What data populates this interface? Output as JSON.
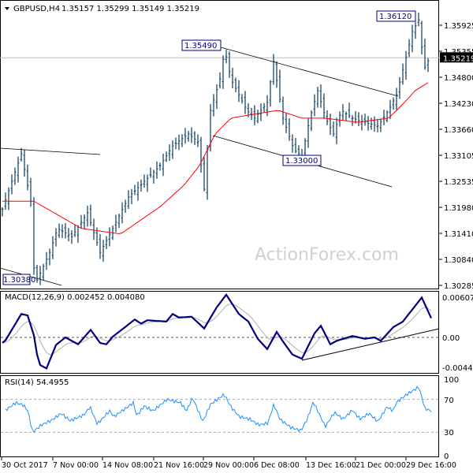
{
  "header": {
    "symbol": "GBPUSD,H4",
    "ohlc": "1.35157 1.35299 1.35149 1.35219"
  },
  "watermark": "ActionForex.com",
  "colors": {
    "bars": "#0b3a5c",
    "ma": "#ff0000",
    "macd": "#00007f",
    "signal": "#b0b0b0",
    "rsi": "#1e90ff",
    "trend": "#000000",
    "label_box": "#00007f"
  },
  "chart_data": [
    {
      "type": "line",
      "title": "GBPUSD,H4",
      "bar_count": 136,
      "ylim": [
        1.30285,
        1.3623
      ],
      "y_ticks": [
        "1.35925",
        "1.35355",
        "1.34800",
        "1.34230",
        "1.33660",
        "1.33105",
        "1.32535",
        "1.31980",
        "1.31410",
        "1.30840",
        "1.30285"
      ],
      "current_price": "1.35219",
      "price_path": [
        [
          0,
          1.3194
        ],
        [
          6,
          1.3314
        ],
        [
          9,
          1.3211
        ],
        [
          10,
          1.3066
        ],
        [
          11,
          1.304
        ],
        [
          15,
          1.31
        ],
        [
          17.5,
          1.3152
        ],
        [
          22,
          1.3134
        ],
        [
          27,
          1.3186
        ],
        [
          31,
          1.31
        ],
        [
          35,
          1.3152
        ],
        [
          40,
          1.322
        ],
        [
          45,
          1.3254
        ],
        [
          50,
          1.3288
        ],
        [
          54,
          1.3331
        ],
        [
          59,
          1.3357
        ],
        [
          62,
          1.334
        ],
        [
          64,
          1.3237
        ],
        [
          66,
          1.3408
        ],
        [
          69,
          1.3476
        ],
        [
          70.5,
          1.354
        ],
        [
          72.5,
          1.3476
        ],
        [
          75,
          1.3442
        ],
        [
          77.5,
          1.3408
        ],
        [
          80,
          1.3391
        ],
        [
          84,
          1.3425
        ],
        [
          86,
          1.3514
        ],
        [
          89,
          1.3391
        ],
        [
          92.5,
          1.3322
        ],
        [
          95,
          1.3309
        ],
        [
          97.5,
          1.3391
        ],
        [
          100,
          1.3451
        ],
        [
          102.5,
          1.3391
        ],
        [
          105,
          1.3357
        ],
        [
          107.5,
          1.3408
        ],
        [
          111,
          1.3391
        ],
        [
          115,
          1.3382
        ],
        [
          119,
          1.3374
        ],
        [
          122.5,
          1.3408
        ],
        [
          125,
          1.3442
        ],
        [
          127.5,
          1.351
        ],
        [
          130,
          1.3579
        ],
        [
          132,
          1.3604
        ],
        [
          133,
          1.3545
        ],
        [
          134,
          1.3502
        ],
        [
          135.5,
          1.35219
        ]
      ],
      "ma_path": [
        [
          0,
          1.3211
        ],
        [
          10,
          1.3211
        ],
        [
          25,
          1.3152
        ],
        [
          37.5,
          1.314
        ],
        [
          50,
          1.3199
        ],
        [
          57.5,
          1.3245
        ],
        [
          62.5,
          1.3288
        ],
        [
          67.5,
          1.3357
        ],
        [
          72.5,
          1.3391
        ],
        [
          80,
          1.34
        ],
        [
          87.5,
          1.3408
        ],
        [
          95,
          1.3391
        ],
        [
          102.5,
          1.3391
        ],
        [
          112.5,
          1.3382
        ],
        [
          122.5,
          1.3391
        ],
        [
          127.5,
          1.3425
        ],
        [
          131,
          1.3451
        ],
        [
          135,
          1.3468
        ]
      ],
      "annotations": [
        "1.35490",
        "1.36120",
        "1.33000",
        "1.30380"
      ],
      "x_ticks": [
        "30 Oct 2017",
        "7 Nov 00:00",
        "14 Nov 08:00",
        "21 Nov 16:00",
        "29 Nov 00:00",
        "6 Dec 08:00",
        "13 Dec 16:00",
        "21 Dec 00:00",
        "29 Dec 16:00"
      ]
    },
    {
      "type": "line",
      "title": "MACD(12,26,9) 0.002452 0.004080",
      "ylim": [
        -0.004441,
        0.006073
      ],
      "y_ticks": [
        "0.006073",
        "0.00",
        "-0.004441"
      ],
      "macd": [
        [
          0.5,
          -0.0008
        ],
        [
          6,
          0.0034
        ],
        [
          8,
          0.0032
        ],
        [
          10,
          0.0003
        ],
        [
          11.5,
          -0.0039
        ],
        [
          14,
          -0.0045
        ],
        [
          17,
          -0.0011
        ],
        [
          20,
          0
        ],
        [
          24,
          -0.001
        ],
        [
          28,
          0.0011
        ],
        [
          31,
          -0.0008
        ],
        [
          33,
          -0.001
        ],
        [
          35,
          0.0001
        ],
        [
          42,
          0.0026
        ],
        [
          44,
          0.002
        ],
        [
          46,
          0.0025
        ],
        [
          52,
          0.0023
        ],
        [
          54,
          0.0034
        ],
        [
          56,
          0.0029
        ],
        [
          60,
          0.003
        ],
        [
          64,
          0.0013
        ],
        [
          68,
          0.0044
        ],
        [
          71,
          0.0062
        ],
        [
          75,
          0.0034
        ],
        [
          78,
          0.0023
        ],
        [
          81,
          -0.0002
        ],
        [
          84,
          -0.0017
        ],
        [
          87,
          0.0008
        ],
        [
          89,
          -0.0006
        ],
        [
          92,
          -0.0025
        ],
        [
          95,
          -0.0031
        ],
        [
          99,
          0.0006
        ],
        [
          101,
          0.0017
        ],
        [
          104,
          -0.001
        ],
        [
          106,
          -0.0005
        ],
        [
          111,
          0.0002
        ],
        [
          115,
          -0.0002
        ],
        [
          118,
          0
        ],
        [
          120,
          -0.0005
        ],
        [
          124,
          0.0015
        ],
        [
          127,
          0.0023
        ],
        [
          133,
          0.0058
        ],
        [
          136,
          0.0028
        ]
      ]
    },
    {
      "type": "line",
      "title": "RSI(14) 54.4955",
      "ylim": [
        0,
        100
      ],
      "y_ticks": [
        "100",
        "70",
        "30",
        "0"
      ],
      "rsi": [
        [
          1,
          57
        ],
        [
          4.3,
          66
        ],
        [
          6.7,
          63
        ],
        [
          8.1,
          56
        ],
        [
          9.6,
          30
        ],
        [
          12.4,
          39
        ],
        [
          15.3,
          44
        ],
        [
          18.7,
          53
        ],
        [
          21.5,
          44
        ],
        [
          25.8,
          51
        ],
        [
          27.8,
          61
        ],
        [
          30.1,
          40
        ],
        [
          34,
          56
        ],
        [
          35.4,
          49
        ],
        [
          41.6,
          66
        ],
        [
          42.6,
          50
        ],
        [
          45,
          62
        ],
        [
          47.8,
          56
        ],
        [
          52.2,
          70
        ],
        [
          56.5,
          66
        ],
        [
          58.4,
          56
        ],
        [
          60.3,
          72
        ],
        [
          63.6,
          43
        ],
        [
          66,
          64
        ],
        [
          70.3,
          76
        ],
        [
          72.7,
          60
        ],
        [
          75.1,
          49
        ],
        [
          78.5,
          46
        ],
        [
          81.3,
          39
        ],
        [
          84.2,
          41
        ],
        [
          86.1,
          64
        ],
        [
          88,
          46
        ],
        [
          91.4,
          36
        ],
        [
          94.7,
          32
        ],
        [
          96.7,
          46
        ],
        [
          98.6,
          67
        ],
        [
          100,
          56
        ],
        [
          102.4,
          37
        ],
        [
          105.3,
          54
        ],
        [
          108.1,
          46
        ],
        [
          111,
          57
        ],
        [
          113.4,
          46
        ],
        [
          116.3,
          53
        ],
        [
          119.1,
          43
        ],
        [
          122,
          61
        ],
        [
          123.9,
          56
        ],
        [
          124.9,
          66
        ],
        [
          128.2,
          76
        ],
        [
          132.1,
          85
        ],
        [
          134,
          59
        ],
        [
          135.9,
          56
        ]
      ]
    }
  ]
}
